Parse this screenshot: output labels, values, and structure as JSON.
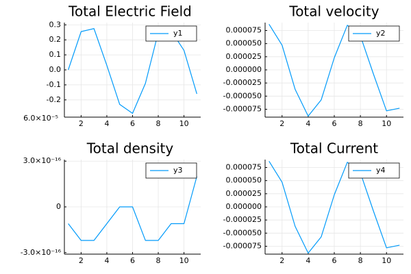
{
  "series_color": "#009AFA",
  "chart_data": [
    {
      "type": "line",
      "title": "Total Electric Field",
      "xlim": [
        0.7,
        11.3
      ],
      "ylim": [
        -0.315,
        0.315
      ],
      "xticks": [
        2,
        4,
        6,
        8,
        10
      ],
      "xtick_labels": [
        "2",
        "4",
        "6",
        "8",
        "10"
      ],
      "yticks": [
        0.3,
        0.2,
        0.1,
        0.0,
        -0.1,
        -0.2
      ],
      "ytick_labels": [
        "0.3",
        "0.2",
        "0.1",
        "0.0",
        "-0.1",
        "-0.2"
      ],
      "extra_label": "6.0×10⁻⁵",
      "legend": "top-right",
      "series": [
        {
          "name": "y1",
          "x": [
            1,
            2,
            3,
            4,
            5,
            6,
            7,
            8,
            9,
            10,
            11
          ],
          "y": [
            0.0,
            0.255,
            0.275,
            0.03,
            -0.23,
            -0.29,
            -0.09,
            0.25,
            0.26,
            0.13,
            -0.16
          ]
        }
      ]
    },
    {
      "type": "line",
      "title": "Total velocity",
      "xlim": [
        0.7,
        11.3
      ],
      "ylim": [
        -9e-05,
        9e-05
      ],
      "xticks": [
        2,
        4,
        6,
        8,
        10
      ],
      "xtick_labels": [
        "2",
        "4",
        "6",
        "8",
        "10"
      ],
      "yticks": [
        7.5e-05,
        5e-05,
        2.5e-05,
        0.0,
        -2.5e-05,
        -5e-05,
        -7.5e-05
      ],
      "ytick_labels": [
        "0.000075",
        "0.000050",
        "0.000025",
        "0.000000",
        "-0.000025",
        "-0.000050",
        "-0.000075"
      ],
      "legend": "top-right",
      "series": [
        {
          "name": "y2",
          "x": [
            1,
            2,
            3,
            4,
            5,
            6,
            7,
            8,
            9,
            10,
            11
          ],
          "y": [
            8.7e-05,
            4.7e-05,
            -3.7e-05,
            -8.8e-05,
            -5.7e-05,
            2.3e-05,
            8.5e-05,
            6.5e-05,
            -8e-06,
            -7.8e-05,
            -7.3e-05
          ]
        }
      ]
    },
    {
      "type": "line",
      "title": "Total density",
      "xlim": [
        0.7,
        11.3
      ],
      "ylim": [
        -3.1e-16,
        3.1e-16
      ],
      "xticks": [
        2,
        4,
        6,
        8,
        10
      ],
      "xtick_labels": [
        "2",
        "4",
        "6",
        "8",
        "10"
      ],
      "yticks": [
        3e-16,
        0,
        -3e-16
      ],
      "ytick_labels": [
        "3.0×10⁻¹⁶",
        "0",
        "-3.0×10⁻¹⁶"
      ],
      "legend": "top-right",
      "series": [
        {
          "name": "y3",
          "x": [
            1,
            2,
            3,
            4,
            5,
            6,
            7,
            8,
            9,
            10,
            11
          ],
          "y": [
            -1.1e-16,
            -2.2e-16,
            -2.2e-16,
            -1.1e-16,
            0,
            0,
            -2.2e-16,
            -2.2e-16,
            -1.1e-16,
            -1.1e-16,
            2e-16
          ]
        }
      ]
    },
    {
      "type": "line",
      "title": "Total Current",
      "xlim": [
        0.7,
        11.3
      ],
      "ylim": [
        -9e-05,
        9e-05
      ],
      "xticks": [
        2,
        4,
        6,
        8,
        10
      ],
      "xtick_labels": [
        "2",
        "4",
        "6",
        "8",
        "10"
      ],
      "yticks": [
        7.5e-05,
        5e-05,
        2.5e-05,
        0.0,
        -2.5e-05,
        -5e-05,
        -7.5e-05
      ],
      "ytick_labels": [
        "0.000075",
        "0.000050",
        "0.000025",
        "0.000000",
        "-0.000025",
        "-0.000050",
        "-0.000075"
      ],
      "legend": "top-right",
      "series": [
        {
          "name": "y4",
          "x": [
            1,
            2,
            3,
            4,
            5,
            6,
            7,
            8,
            9,
            10,
            11
          ],
          "y": [
            8.7e-05,
            4.7e-05,
            -3.7e-05,
            -8.8e-05,
            -5.7e-05,
            2.3e-05,
            8.5e-05,
            6.5e-05,
            -8e-06,
            -7.8e-05,
            -7.3e-05
          ]
        }
      ]
    }
  ]
}
